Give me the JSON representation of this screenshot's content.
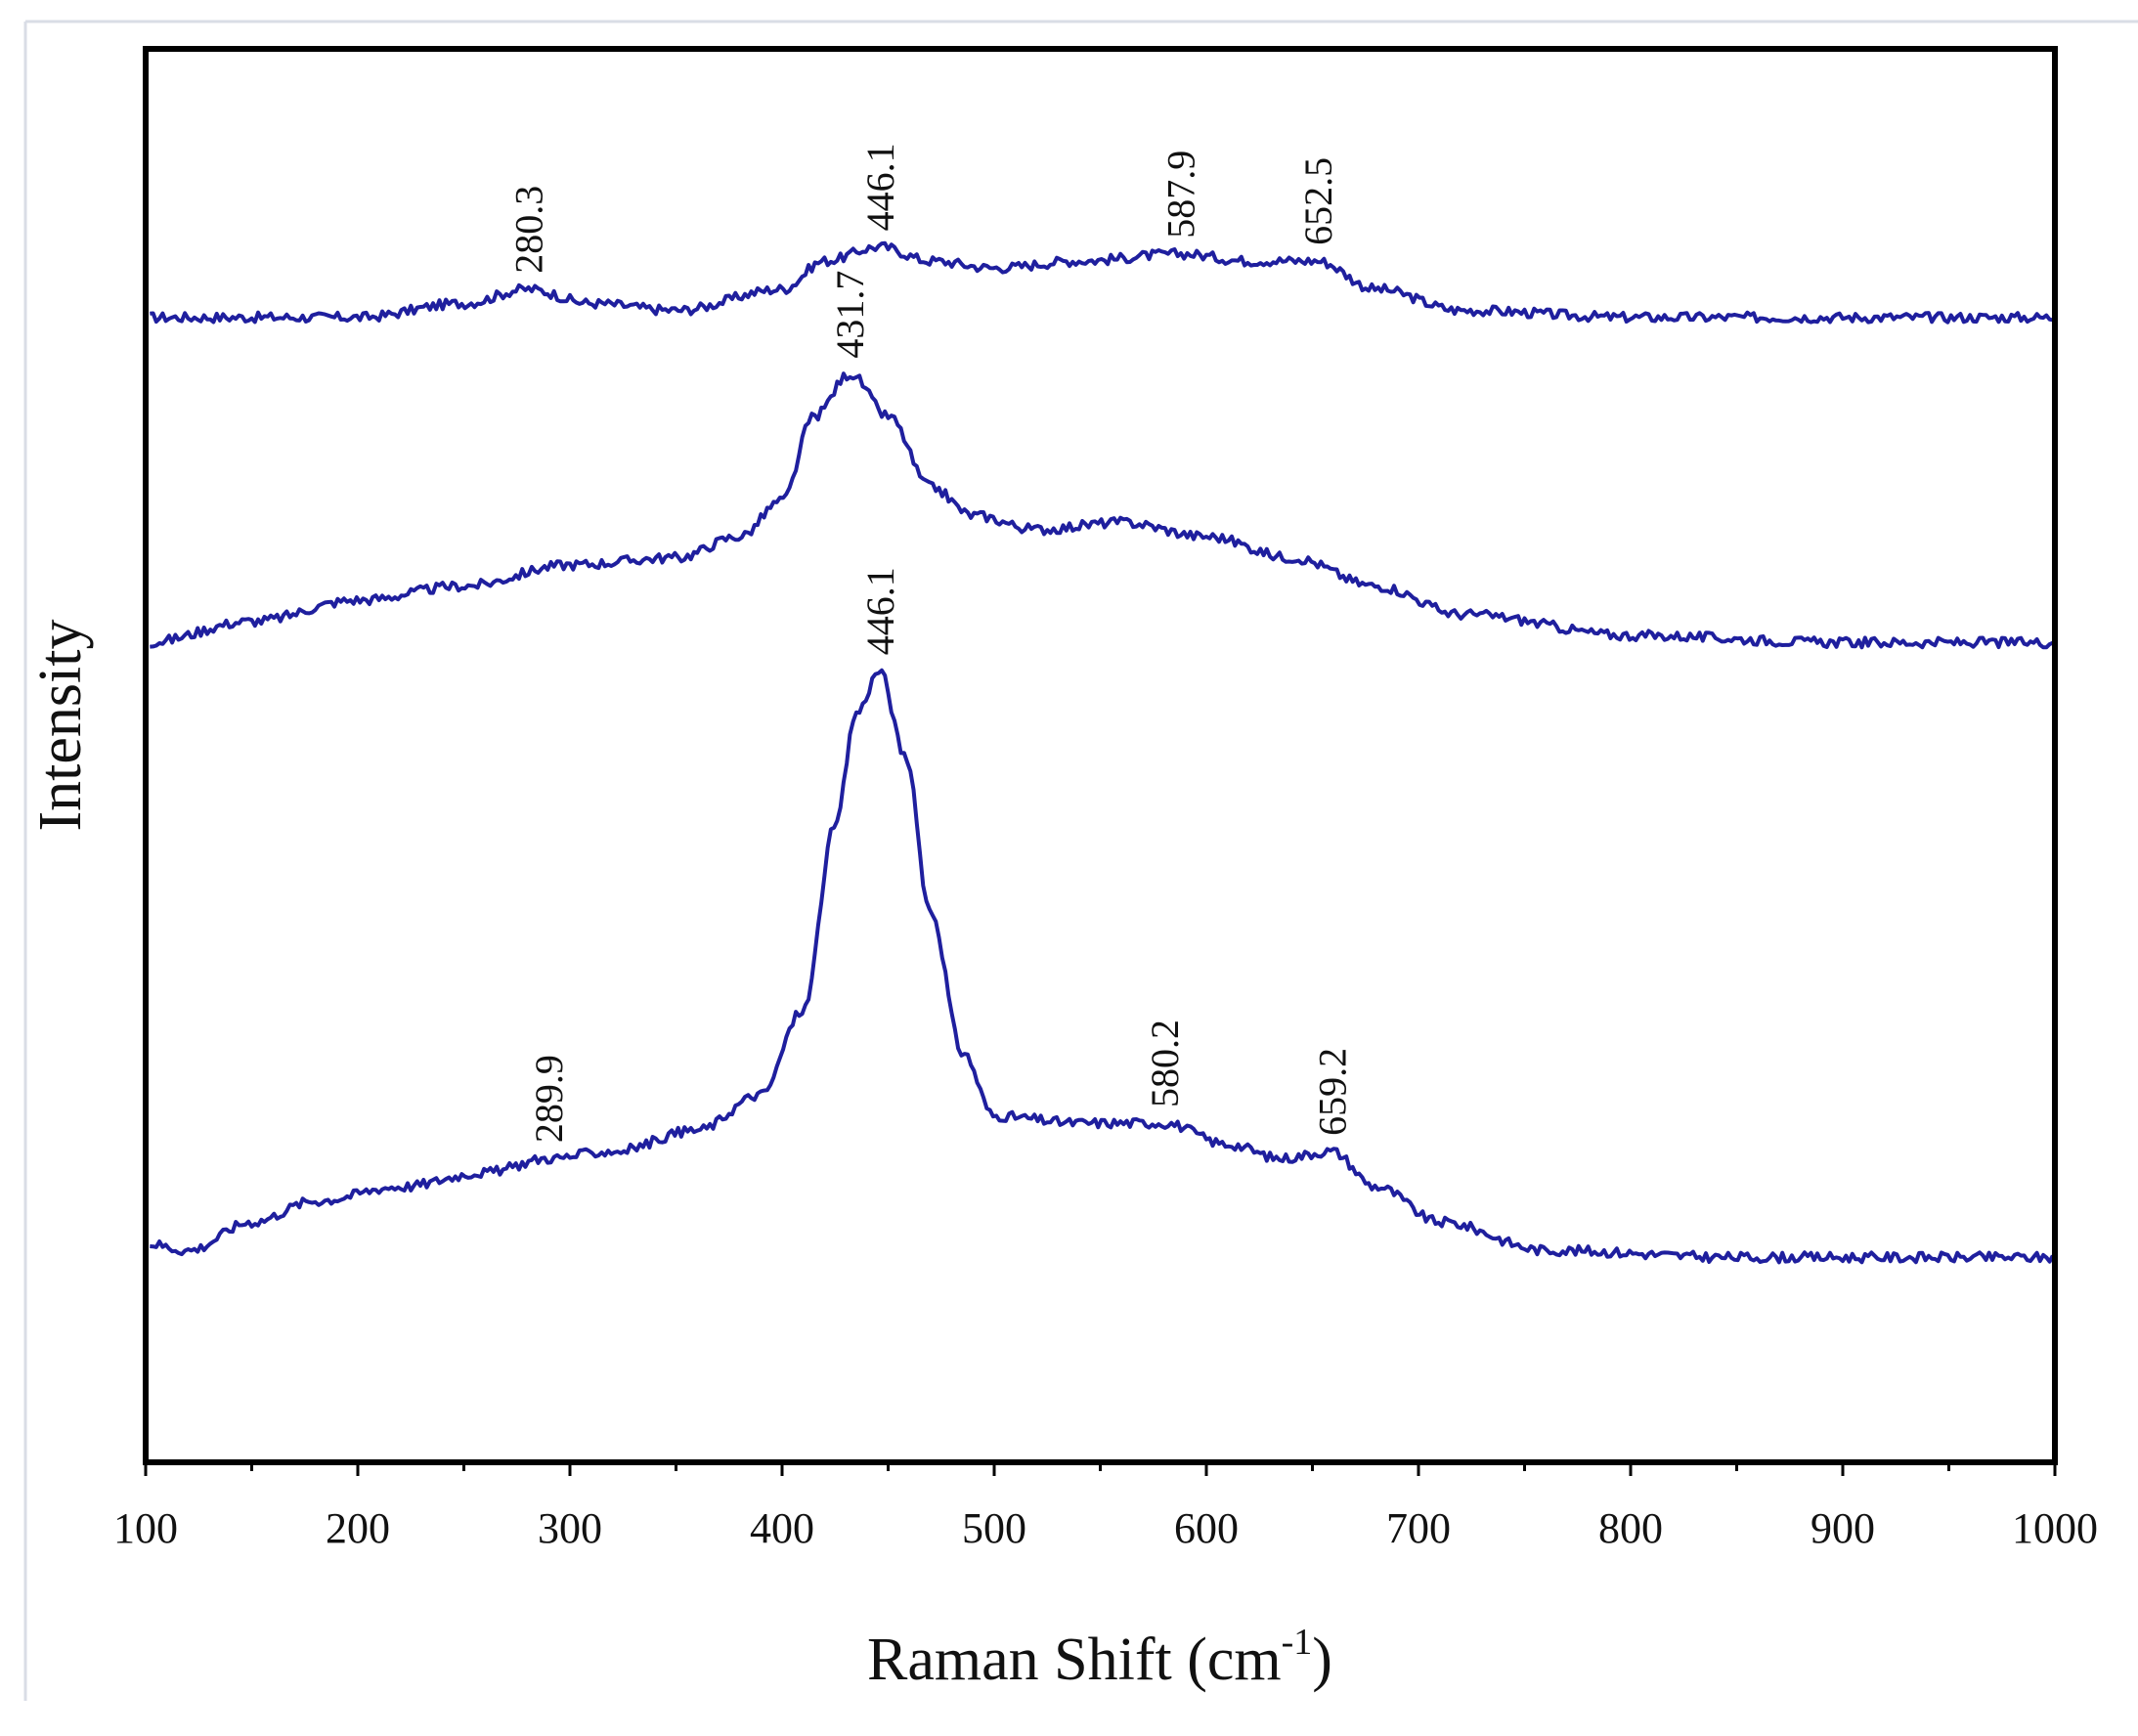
{
  "chart_data": {
    "type": "line",
    "title": "",
    "xlabel": "Raman Shift (cm",
    "xlabel_superscript": "-1",
    "xlabel_suffix": ")",
    "ylabel": "Intensity",
    "xlim": [
      100,
      1000
    ],
    "ylim": [
      0,
      10
    ],
    "xticks": [
      100,
      200,
      300,
      400,
      500,
      600,
      700,
      800,
      900,
      1000
    ],
    "yticks_shown": false,
    "grid": false,
    "legend": "none",
    "line_color": "#1f1f9e",
    "series": [
      {
        "name": "top",
        "x": [
          100,
          150,
          200,
          250,
          280,
          310,
          350,
          400,
          420,
          446,
          470,
          500,
          540,
          588,
          620,
          652,
          680,
          720,
          800,
          900,
          1000
        ],
        "y": [
          8.1,
          8.1,
          8.1,
          8.2,
          8.3,
          8.2,
          8.15,
          8.3,
          8.5,
          8.6,
          8.5,
          8.45,
          8.5,
          8.55,
          8.5,
          8.5,
          8.3,
          8.15,
          8.1,
          8.1,
          8.1
        ],
        "peaks": [
          {
            "x": 280.3,
            "label": "280.3"
          },
          {
            "x": 446.1,
            "label": "446.1"
          },
          {
            "x": 587.9,
            "label": "587.9"
          },
          {
            "x": 652.5,
            "label": "652.5"
          }
        ]
      },
      {
        "name": "middle",
        "x": [
          100,
          150,
          200,
          250,
          300,
          350,
          380,
          400,
          415,
          432,
          450,
          470,
          490,
          520,
          560,
          600,
          640,
          680,
          720,
          800,
          900,
          1000
        ],
        "y": [
          5.8,
          5.95,
          6.1,
          6.2,
          6.35,
          6.4,
          6.55,
          6.8,
          7.4,
          7.7,
          7.4,
          6.9,
          6.7,
          6.6,
          6.65,
          6.55,
          6.4,
          6.2,
          6.0,
          5.85,
          5.8,
          5.8
        ],
        "peaks": [
          {
            "x": 431.7,
            "label": "431.7"
          }
        ]
      },
      {
        "name": "bottom",
        "x": [
          100,
          120,
          150,
          180,
          220,
          260,
          290,
          320,
          360,
          390,
          410,
          425,
          435,
          446,
          458,
          470,
          485,
          500,
          540,
          580,
          610,
          635,
          659,
          680,
          710,
          760,
          850,
          1000
        ],
        "y": [
          1.55,
          1.5,
          1.7,
          1.85,
          1.95,
          2.05,
          2.15,
          2.2,
          2.35,
          2.6,
          3.2,
          4.5,
          5.3,
          5.6,
          5.0,
          3.9,
          2.9,
          2.45,
          2.4,
          2.4,
          2.25,
          2.15,
          2.2,
          1.95,
          1.7,
          1.5,
          1.45,
          1.45
        ],
        "peaks": [
          {
            "x": 289.9,
            "label": "289.9"
          },
          {
            "x": 446.1,
            "label": "446.1"
          },
          {
            "x": 580.2,
            "label": "580.2"
          },
          {
            "x": 659.2,
            "label": "659.2"
          }
        ]
      }
    ]
  }
}
